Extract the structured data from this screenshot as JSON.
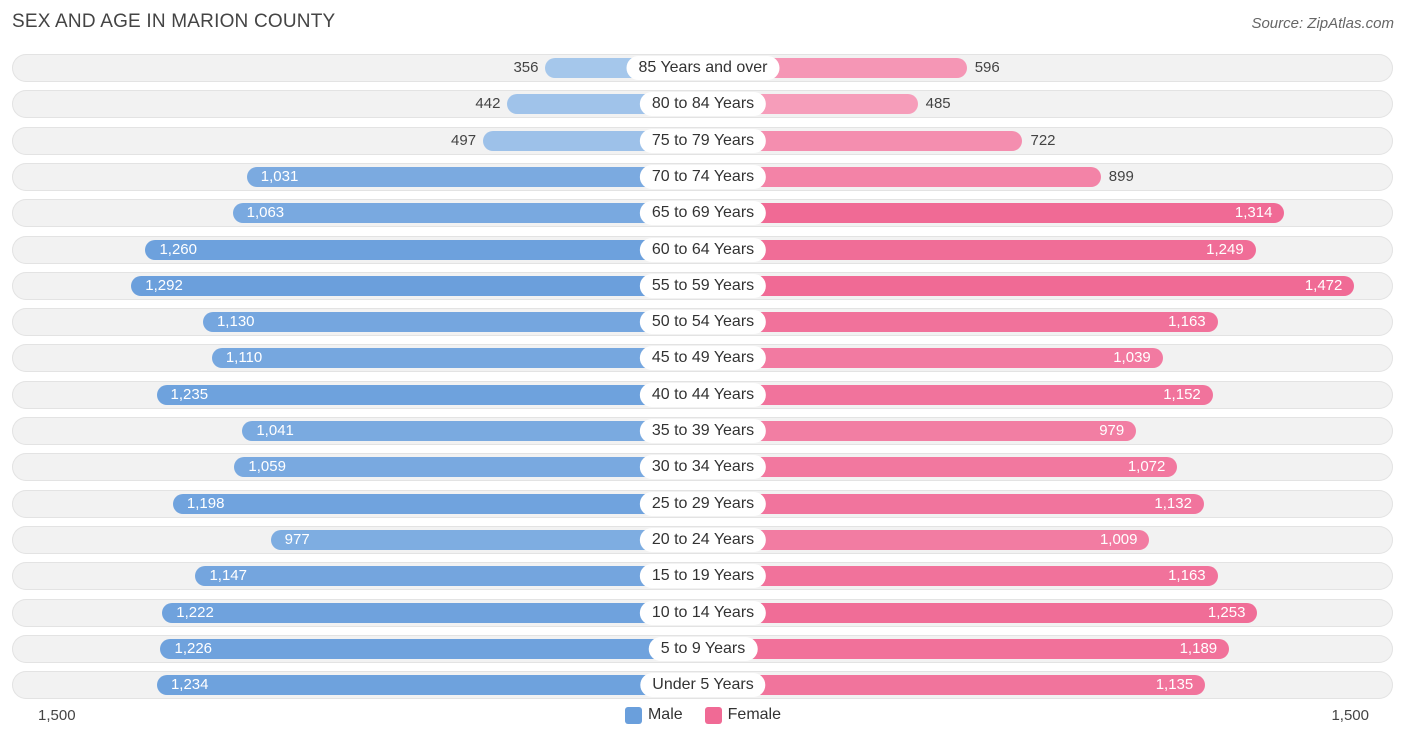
{
  "title": "SEX AND AGE IN MARION COUNTY",
  "source": "Source: ZipAtlas.com",
  "colors": {
    "male_strong": "#6a9fdc",
    "male_light": "#a9c9ec",
    "female_strong": "#f06a95",
    "female_light": "#f7a8c2"
  },
  "chart_data": {
    "type": "bar",
    "orientation": "horizontal-diverging",
    "title": "SEX AND AGE IN MARION COUNTY",
    "axis_max": 1500,
    "axis_left_label": "1,500",
    "axis_right_label": "1,500",
    "legend": [
      {
        "name": "Male",
        "color": "#6a9fdc"
      },
      {
        "name": "Female",
        "color": "#f06a95"
      }
    ],
    "categories": [
      "85 Years and over",
      "80 to 84 Years",
      "75 to 79 Years",
      "70 to 74 Years",
      "65 to 69 Years",
      "60 to 64 Years",
      "55 to 59 Years",
      "50 to 54 Years",
      "45 to 49 Years",
      "40 to 44 Years",
      "35 to 39 Years",
      "30 to 34 Years",
      "25 to 29 Years",
      "20 to 24 Years",
      "15 to 19 Years",
      "10 to 14 Years",
      "5 to 9 Years",
      "Under 5 Years"
    ],
    "series": [
      {
        "name": "Male",
        "values": [
          356,
          442,
          497,
          1031,
          1063,
          1260,
          1292,
          1130,
          1110,
          1235,
          1041,
          1059,
          1198,
          977,
          1147,
          1222,
          1226,
          1234
        ]
      },
      {
        "name": "Female",
        "values": [
          596,
          485,
          722,
          899,
          1314,
          1249,
          1472,
          1163,
          1039,
          1152,
          979,
          1072,
          1132,
          1009,
          1163,
          1253,
          1189,
          1135
        ]
      }
    ]
  }
}
